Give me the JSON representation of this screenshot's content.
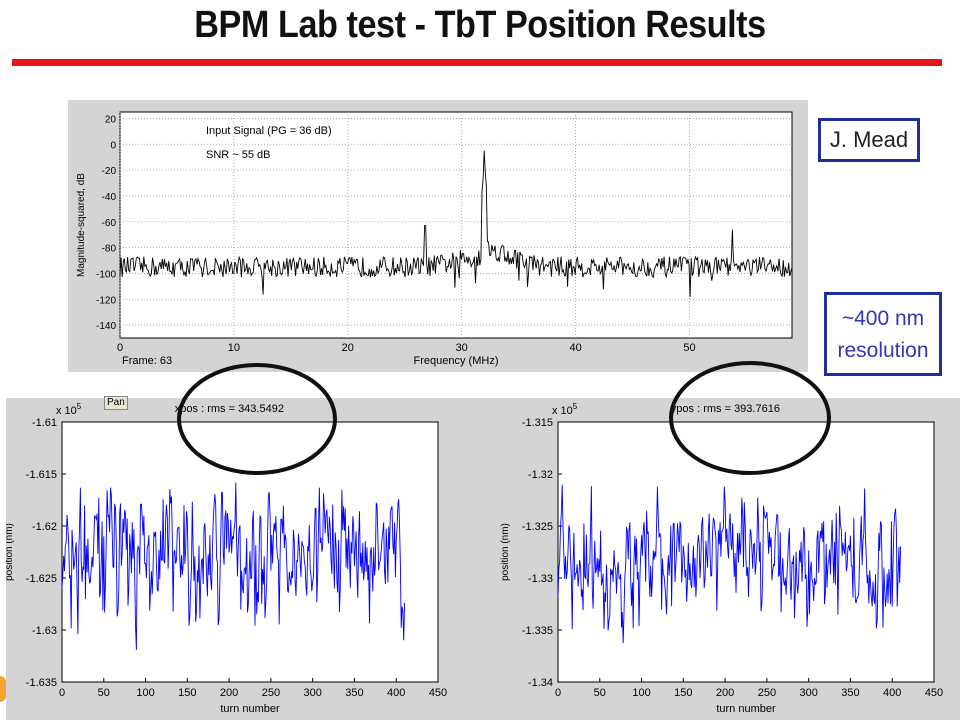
{
  "slide": {
    "title": "BPM Lab test -  TbT Position Results",
    "author": "J. Mead",
    "resolution_line1": "~400 nm",
    "resolution_line2": "resolution",
    "pan_button": "Pan",
    "accent_red": "#e8121a",
    "accent_blue": "#1f2f9a"
  },
  "chart_data": [
    {
      "type": "line",
      "id": "spectrum",
      "xlabel": "Frequency (MHz)",
      "ylabel": "Magnitude-squared, dB",
      "xlim": [
        0,
        59
      ],
      "ylim": [
        -150,
        25
      ],
      "xticks": [
        0,
        10,
        20,
        30,
        40,
        50
      ],
      "yticks": [
        20,
        0,
        -20,
        -40,
        -60,
        -80,
        -100,
        -120,
        -140
      ],
      "frame_label": "Frame: 63",
      "annotations": [
        "Input Signal (PG = 36 dB)",
        "SNR ~ 55 dB"
      ],
      "noise_floor_db": -95,
      "peaks": [
        {
          "x": 32.0,
          "y": -5
        },
        {
          "x": 26.8,
          "y": -63
        },
        {
          "x": 53.8,
          "y": -66
        }
      ],
      "line_color": "#000000",
      "grid": true
    },
    {
      "type": "line",
      "id": "xpos",
      "title": "xpos :   rms = 343.5492",
      "xlabel": "turn number",
      "ylabel": "position (nm)",
      "exponent_label": "x 10^5",
      "xlim": [
        0,
        450
      ],
      "ylim": [
        -1.635,
        -1.61
      ],
      "xticks": [
        0,
        50,
        100,
        150,
        200,
        250,
        300,
        350,
        400,
        450
      ],
      "yticks": [
        -1.61,
        -1.615,
        -1.62,
        -1.625,
        -1.63,
        -1.635
      ],
      "ytick_labels": [
        "-1.61",
        "-1.615",
        "-1.62",
        "-1.625",
        "-1.63",
        "-1.635"
      ],
      "x_range": [
        0,
        410
      ],
      "mean": -1.6223,
      "series_min": -1.6338,
      "series_max": -1.6132,
      "line_color": "#0000ff",
      "grid": false
    },
    {
      "type": "line",
      "id": "ypos",
      "title": "ypos :   rms = 393.7616",
      "xlabel": "turn number",
      "ylabel": "position (nm)",
      "exponent_label": "x 10^5",
      "xlim": [
        0,
        450
      ],
      "ylim": [
        -1.34,
        -1.315
      ],
      "xticks": [
        0,
        50,
        100,
        150,
        200,
        250,
        300,
        350,
        400,
        450
      ],
      "yticks": [
        -1.315,
        -1.32,
        -1.325,
        -1.33,
        -1.335,
        -1.34
      ],
      "ytick_labels": [
        "-1.315",
        "-1.32",
        "-1.325",
        "-1.33",
        "-1.335",
        "-1.34"
      ],
      "x_range": [
        0,
        410
      ],
      "mean": -1.3285,
      "series_min": -1.3385,
      "series_max": -1.3185,
      "line_color": "#0000ff",
      "grid": false
    }
  ]
}
